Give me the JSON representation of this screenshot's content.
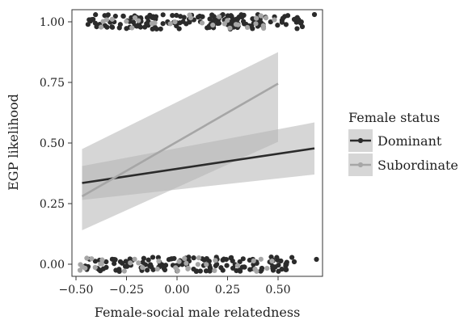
{
  "chart_data": {
    "type": "scatter",
    "title": "",
    "xlabel": "Female-social male relatedness",
    "ylabel": "EGP likelihood",
    "xlim": [
      -0.52,
      0.72
    ],
    "ylim": [
      -0.05,
      1.05
    ],
    "x_ticks": [
      -0.5,
      -0.25,
      0.0,
      0.25,
      0.5
    ],
    "x_tick_labels": [
      "−0.50",
      "−0.25",
      "0.00",
      "0.25",
      "0.50"
    ],
    "y_ticks": [
      0.0,
      0.25,
      0.5,
      0.75,
      1.0
    ],
    "y_tick_labels": [
      "0.00",
      "0.25",
      "0.50",
      "0.75",
      "1.00"
    ],
    "grid": false,
    "legend": {
      "title": "Female status",
      "position": "right",
      "entries": [
        "Dominant",
        "Subordinate"
      ]
    },
    "colors": {
      "panel_bg": "#ffffff",
      "panel_border": "#333333",
      "dominant": "#2b2b2b",
      "subordinate": "#a6a6a6",
      "ribbon": "#b5b5b5"
    },
    "series": [
      {
        "name": "Dominant",
        "fit": {
          "x": [
            -0.47,
            0.68
          ],
          "y": [
            0.335,
            0.478
          ]
        },
        "ci": {
          "x": [
            -0.47,
            0.68
          ],
          "lower": [
            0.265,
            0.37
          ],
          "upper": [
            0.405,
            0.585
          ]
        },
        "points": {
          "y1": {
            "n": 170,
            "x_range": [
              -0.45,
              0.62
            ],
            "extra": [
              [
                0.68,
                1.03
              ],
              [
                0.62,
                0.98
              ],
              [
                0.58,
                1.01
              ]
            ]
          },
          "y0": {
            "n": 140,
            "x_range": [
              -0.46,
              0.58
            ],
            "extra": [
              [
                0.69,
                0.02
              ],
              [
                0.58,
                0.01
              ],
              [
                -0.44,
                -0.01
              ]
            ]
          }
        }
      },
      {
        "name": "Subordinate",
        "fit": {
          "x": [
            -0.47,
            0.5
          ],
          "y": [
            0.28,
            0.745
          ]
        },
        "ci": {
          "x": [
            -0.47,
            0.5
          ],
          "lower": [
            0.14,
            0.505
          ],
          "upper": [
            0.475,
            0.875
          ]
        },
        "points": {
          "y1": {
            "n": 30,
            "x_range": [
              -0.45,
              0.5
            ],
            "extra": []
          },
          "y0": {
            "n": 35,
            "x_range": [
              -0.48,
              0.5
            ],
            "extra": [
              [
                -0.48,
                -0.025
              ]
            ]
          }
        }
      }
    ]
  }
}
